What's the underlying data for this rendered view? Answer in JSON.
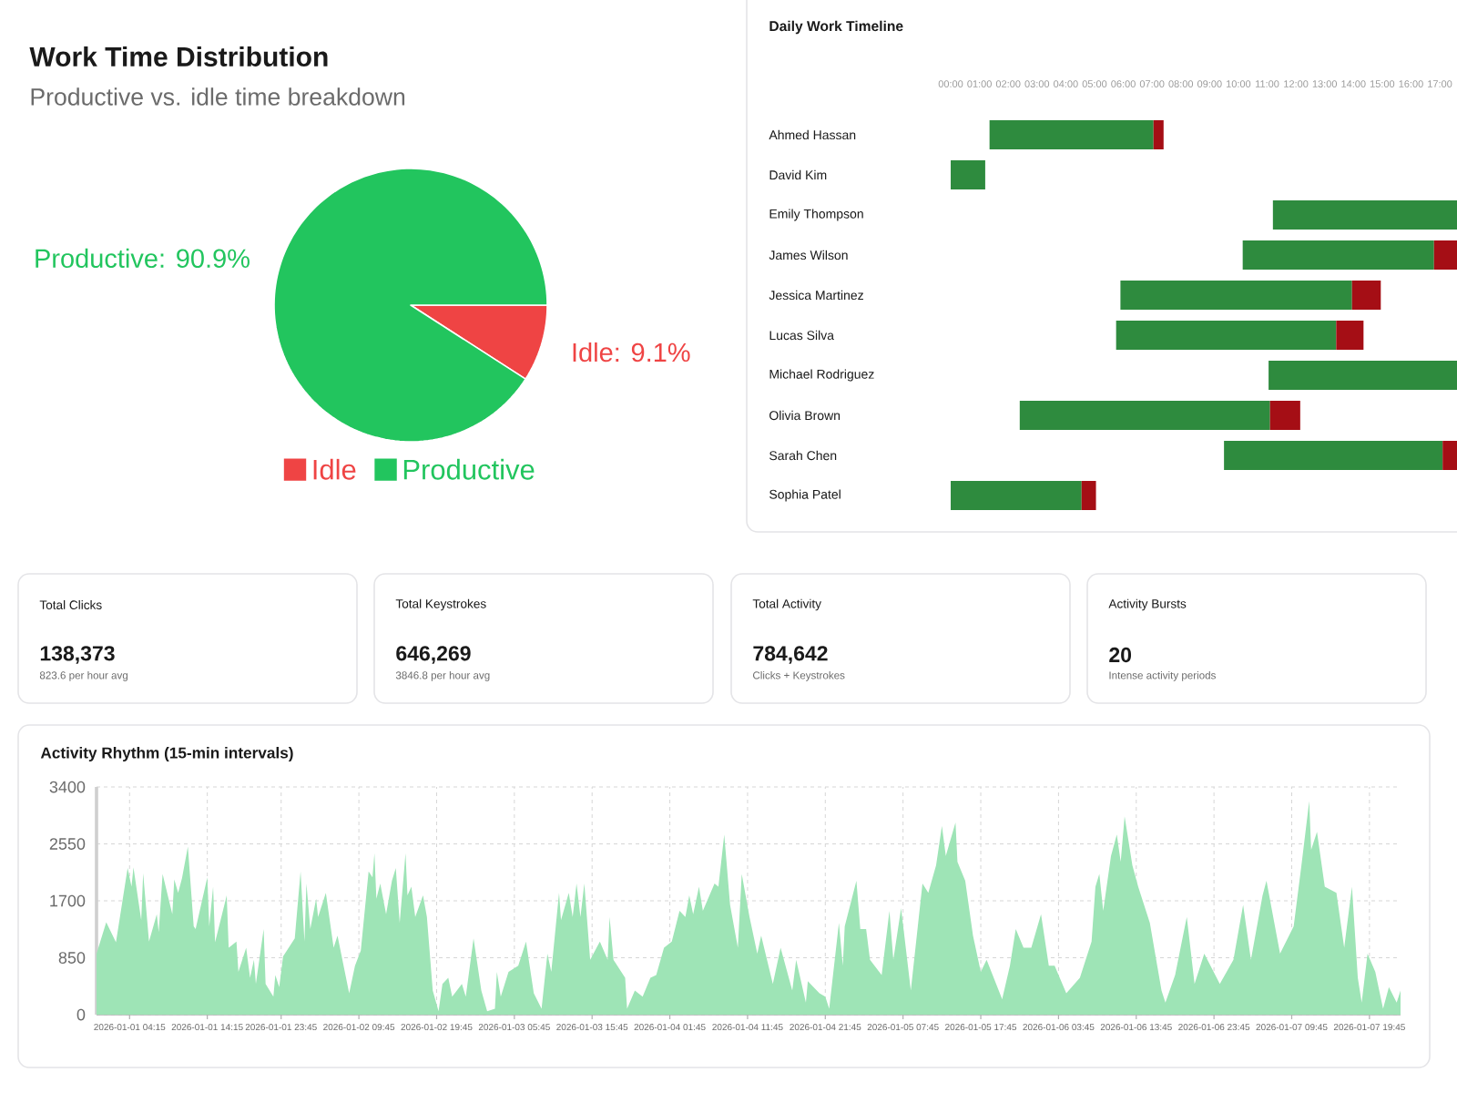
{
  "chart_data": [
    {
      "type": "pie",
      "title": "Work Time Distribution",
      "subtitle": "Productive vs. idle time breakdown",
      "categories": [
        "Idle",
        "Productive"
      ],
      "values": [
        9.1,
        90.9
      ],
      "colors": [
        "#ef4444",
        "#22c55e"
      ],
      "value_labels": [
        "Idle: 9.1%",
        "Productive: 90.9%"
      ],
      "legend": "bottom"
    },
    {
      "type": "bar",
      "orientation": "horizontal",
      "title": "Daily Work Timeline",
      "categories": [
        "Ahmed Hassan",
        "David Kim",
        "Emily Thompson",
        "James Wilson",
        "Jessica Martinez",
        "Lucas Silva",
        "Michael Rodriguez",
        "Olivia Brown",
        "Sarah Chen",
        "Sophia Patel"
      ],
      "series": [
        {
          "color": "#2e8b3e",
          "base": [
            1.35,
            0,
            11.2,
            10.15,
            5.9,
            5.75,
            11.05,
            2.4,
            9.5,
            0
          ],
          "values": [
            5.7,
            1.2,
            6.4,
            6.65,
            8.05,
            7.65,
            6.55,
            8.7,
            7.6,
            4.55
          ]
        },
        {
          "color": "#a50e15",
          "base": [
            7.05,
            null,
            null,
            16.8,
            13.95,
            13.4,
            null,
            11.1,
            17.1,
            4.55
          ],
          "values": [
            0.35,
            null,
            null,
            0.8,
            1.0,
            0.95,
            null,
            1.05,
            0.5,
            0.5
          ]
        }
      ],
      "xlim": [
        0,
        17.6
      ],
      "xticks": [
        {
          "value": 0,
          "label": "00:00"
        },
        {
          "value": 1,
          "label": "01:00"
        },
        {
          "value": 2,
          "label": "02:00"
        },
        {
          "value": 3,
          "label": "03:00"
        },
        {
          "value": 4,
          "label": "04:00"
        },
        {
          "value": 5,
          "label": "05:00"
        },
        {
          "value": 6,
          "label": "06:00"
        },
        {
          "value": 7,
          "label": "07:00"
        },
        {
          "value": 8,
          "label": "08:00"
        },
        {
          "value": 9,
          "label": "09:00"
        },
        {
          "value": 10,
          "label": "10:00"
        },
        {
          "value": 11,
          "label": "11:00"
        },
        {
          "value": 12,
          "label": "12:00"
        },
        {
          "value": 13,
          "label": "13:00"
        },
        {
          "value": 14,
          "label": "14:00"
        },
        {
          "value": 15,
          "label": "15:00"
        },
        {
          "value": 16,
          "label": "16:00"
        },
        {
          "value": 17,
          "label": "17:00"
        }
      ]
    },
    {
      "type": "other",
      "title": "Total Clicks",
      "annotations": [
        "138,373",
        "823.6 per hour avg"
      ]
    },
    {
      "type": "other",
      "title": "Total Keystrokes",
      "annotations": [
        "646,269",
        "3846.8 per hour avg"
      ]
    },
    {
      "type": "other",
      "title": "Total Activity",
      "annotations": [
        "784,642",
        "Clicks + Keystrokes"
      ]
    },
    {
      "type": "other",
      "title": "Activity Bursts",
      "annotations": [
        "20",
        "Intense activity periods"
      ]
    },
    {
      "type": "area",
      "title": "Activity Rhythm (15-min intervals)",
      "color": "#9ee4b6",
      "grid": true,
      "x": [
        "2026-01-01T00:00",
        "2026-01-01T01:15",
        "2026-01-01T02:30",
        "2026-01-01T04:00",
        "2026-01-01T04:30",
        "2026-01-01T04:45",
        "2026-01-01T05:45",
        "2026-01-01T06:00",
        "2026-01-01T06:45",
        "2026-01-01T07:45",
        "2026-01-01T08:00",
        "2026-01-01T08:30",
        "2026-01-01T09:45",
        "2026-01-01T10:00",
        "2026-01-01T10:30",
        "2026-01-01T11:00",
        "2026-01-01T11:45",
        "2026-01-01T12:30",
        "2026-01-01T12:45",
        "2026-01-01T14:15",
        "2026-01-01T14:30",
        "2026-01-01T15:00",
        "2026-01-01T15:15",
        "2026-01-01T16:45",
        "2026-01-01T17:00",
        "2026-01-01T18:00",
        "2026-01-01T18:15",
        "2026-01-01T19:15",
        "2026-01-01T19:45",
        "2026-01-01T20:15",
        "2026-01-01T20:30",
        "2026-01-01T21:30",
        "2026-01-01T21:45",
        "2026-01-01T22:45",
        "2026-01-01T23:00",
        "2026-01-01T23:30",
        "2026-01-02T00:00",
        "2026-01-02T01:30",
        "2026-01-02T02:15",
        "2026-01-02T02:45",
        "2026-01-02T03:00",
        "2026-01-02T03:30",
        "2026-01-02T04:15",
        "2026-01-02T04:30",
        "2026-01-02T05:30",
        "2026-01-02T06:30",
        "2026-01-02T07:00",
        "2026-01-02T08:30",
        "2026-01-02T09:15",
        "2026-01-02T10:00",
        "2026-01-02T11:00",
        "2026-01-02T11:30",
        "2026-01-02T11:45",
        "2026-01-02T12:00",
        "2026-01-02T12:30",
        "2026-01-02T13:15",
        "2026-01-02T14:00",
        "2026-01-02T14:30",
        "2026-01-02T15:00",
        "2026-01-02T15:45",
        "2026-01-02T16:00",
        "2026-01-02T16:30",
        "2026-01-02T17:00",
        "2026-01-02T18:00",
        "2026-01-02T18:30",
        "2026-01-02T19:15",
        "2026-01-02T20:00",
        "2026-01-02T20:30",
        "2026-01-02T21:15",
        "2026-01-02T21:45",
        "2026-01-02T23:00",
        "2026-01-02T23:30",
        "2026-01-03T00:30",
        "2026-01-03T01:30",
        "2026-01-03T02:15",
        "2026-01-03T03:15",
        "2026-01-03T03:30",
        "2026-01-03T04:00",
        "2026-01-03T05:00",
        "2026-01-03T06:15",
        "2026-01-03T07:15",
        "2026-01-03T08:15",
        "2026-01-03T09:15",
        "2026-01-03T10:00",
        "2026-01-03T10:30",
        "2026-01-03T11:30",
        "2026-01-03T11:45",
        "2026-01-03T12:45",
        "2026-01-03T13:15",
        "2026-01-03T13:45",
        "2026-01-03T14:15",
        "2026-01-03T14:45",
        "2026-01-03T15:30",
        "2026-01-03T16:45",
        "2026-01-03T17:45",
        "2026-01-03T18:00",
        "2026-01-03T18:30",
        "2026-01-03T20:00",
        "2026-01-03T20:15",
        "2026-01-03T21:15",
        "2026-01-03T22:15",
        "2026-01-03T23:15",
        "2026-01-04T00:00",
        "2026-01-04T01:00",
        "2026-01-04T02:00",
        "2026-01-04T03:00",
        "2026-01-04T03:45",
        "2026-01-04T04:15",
        "2026-01-04T04:45",
        "2026-01-04T05:30",
        "2026-01-04T06:00",
        "2026-01-04T07:30",
        "2026-01-04T08:00",
        "2026-01-04T08:45",
        "2026-01-04T09:30",
        "2026-01-04T10:30",
        "2026-01-04T11:00",
        "2026-01-04T12:00",
        "2026-01-04T13:00",
        "2026-01-04T13:30",
        "2026-01-04T15:00",
        "2026-01-04T16:00",
        "2026-01-04T17:30",
        "2026-01-04T18:00",
        "2026-01-04T19:15",
        "2026-01-04T19:30",
        "2026-01-04T21:00",
        "2026-01-04T21:45",
        "2026-01-04T22:15",
        "2026-01-04T23:30",
        "2026-01-05T00:00",
        "2026-01-05T00:15",
        "2026-01-05T01:45",
        "2026-01-05T02:15",
        "2026-01-05T03:00",
        "2026-01-05T03:30",
        "2026-01-05T05:00",
        "2026-01-05T06:00",
        "2026-01-05T06:30",
        "2026-01-05T07:30",
        "2026-01-05T08:45",
        "2026-01-05T10:15",
        "2026-01-05T11:00",
        "2026-01-05T12:00",
        "2026-01-05T12:45",
        "2026-01-05T13:15",
        "2026-01-05T14:30",
        "2026-01-05T14:45",
        "2026-01-05T15:45",
        "2026-01-05T16:45",
        "2026-01-05T17:45",
        "2026-01-05T18:30",
        "2026-01-05T20:30",
        "2026-01-05T21:30",
        "2026-01-05T22:15",
        "2026-01-05T23:15",
        "2026-01-06T00:15",
        "2026-01-06T01:30",
        "2026-01-06T02:30",
        "2026-01-06T03:15",
        "2026-01-06T04:45",
        "2026-01-06T06:30",
        "2026-01-06T08:00",
        "2026-01-06T08:30",
        "2026-01-06T09:00",
        "2026-01-06T09:30",
        "2026-01-06T10:30",
        "2026-01-06T11:15",
        "2026-01-06T11:45",
        "2026-01-06T12:15",
        "2026-01-06T13:15",
        "2026-01-06T14:00",
        "2026-01-06T15:30",
        "2026-01-06T17:00",
        "2026-01-06T17:30",
        "2026-01-06T18:45",
        "2026-01-06T20:15",
        "2026-01-06T21:15",
        "2026-01-06T22:30",
        "2026-01-07T00:30",
        "2026-01-07T02:15",
        "2026-01-07T03:30",
        "2026-01-07T04:30",
        "2026-01-07T06:00",
        "2026-01-07T06:30",
        "2026-01-07T08:15",
        "2026-01-07T10:00",
        "2026-01-07T11:00",
        "2026-01-07T12:00",
        "2026-01-07T12:15",
        "2026-01-07T13:00",
        "2026-01-07T14:00",
        "2026-01-07T15:30",
        "2026-01-07T16:30",
        "2026-01-07T17:30",
        "2026-01-07T18:15",
        "2026-01-07T18:45",
        "2026-01-07T19:30",
        "2026-01-07T20:30",
        "2026-01-07T21:30",
        "2026-01-07T22:15",
        "2026-01-07T23:15",
        "2026-01-07T23:45"
      ],
      "values": [
        910,
        1380,
        1080,
        2190,
        1910,
        2200,
        1410,
        2110,
        1090,
        1500,
        1230,
        2100,
        1500,
        2020,
        1820,
        2040,
        2510,
        1320,
        1280,
        2050,
        1320,
        1910,
        1080,
        1780,
        1000,
        1090,
        640,
        1000,
        550,
        820,
        460,
        1280,
        460,
        270,
        590,
        410,
        870,
        1140,
        2140,
        1090,
        1960,
        1280,
        1730,
        1460,
        1820,
        1000,
        1180,
        320,
        730,
        960,
        2140,
        2050,
        2410,
        1730,
        1960,
        1500,
        2000,
        2190,
        1370,
        2410,
        1780,
        1910,
        1460,
        1780,
        1460,
        360,
        50,
        460,
        550,
        270,
        460,
        270,
        1140,
        360,
        50,
        90,
        640,
        270,
        640,
        730,
        1090,
        320,
        90,
        910,
        640,
        1820,
        1410,
        1820,
        1460,
        1960,
        1460,
        1960,
        820,
        1090,
        820,
        1460,
        820,
        550,
        90,
        360,
        270,
        550,
        590,
        1000,
        1090,
        1550,
        1460,
        1780,
        1500,
        1910,
        1550,
        1960,
        1910,
        2690,
        1640,
        1000,
        2100,
        1460,
        910,
        1180,
        460,
        1000,
        360,
        820,
        180,
        500,
        320,
        270,
        90,
        1370,
        730,
        1320,
        2000,
        1280,
        1280,
        820,
        590,
        1550,
        820,
        1590,
        360,
        1960,
        1820,
        2230,
        2820,
        2370,
        2870,
        2280,
        2000,
        1180,
        640,
        820,
        230,
        730,
        1280,
        1000,
        1000,
        1500,
        730,
        730,
        320,
        550,
        1090,
        1910,
        2100,
        1550,
        2370,
        2690,
        2280,
        2960,
        2230,
        1910,
        1370,
        360,
        180,
        590,
        1460,
        460,
        910,
        460,
        820,
        1640,
        820,
        1780,
        2000,
        910,
        1320,
        2230,
        3190,
        2460,
        2730,
        1910,
        1820,
        1000,
        1910,
        550,
        180,
        910,
        640,
        90,
        410,
        180,
        360
      ],
      "xlim": [
        "2026-01-01T00:00",
        "2026-01-07T23:45"
      ],
      "ylim": [
        0,
        3400
      ],
      "yticks": [
        0,
        850,
        1700,
        2550,
        3400
      ],
      "xticks": [
        {
          "value": "2026-01-01T04:15",
          "label": "2026-01-01 04:15"
        },
        {
          "value": "2026-01-01T14:15",
          "label": "2026-01-01 14:15"
        },
        {
          "value": "2026-01-01T23:45",
          "label": "2026-01-01 23:45"
        },
        {
          "value": "2026-01-02T09:45",
          "label": "2026-01-02 09:45"
        },
        {
          "value": "2026-01-02T19:45",
          "label": "2026-01-02 19:45"
        },
        {
          "value": "2026-01-03T05:45",
          "label": "2026-01-03 05:45"
        },
        {
          "value": "2026-01-03T15:45",
          "label": "2026-01-03 15:45"
        },
        {
          "value": "2026-01-04T01:45",
          "label": "2026-01-04 01:45"
        },
        {
          "value": "2026-01-04T11:45",
          "label": "2026-01-04 11:45"
        },
        {
          "value": "2026-01-04T21:45",
          "label": "2026-01-04 21:45"
        },
        {
          "value": "2026-01-05T07:45",
          "label": "2026-01-05 07:45"
        },
        {
          "value": "2026-01-05T17:45",
          "label": "2026-01-05 17:45"
        },
        {
          "value": "2026-01-06T03:45",
          "label": "2026-01-06 03:45"
        },
        {
          "value": "2026-01-06T13:45",
          "label": "2026-01-06 13:45"
        },
        {
          "value": "2026-01-06T23:45",
          "label": "2026-01-06 23:45"
        },
        {
          "value": "2026-01-07T09:45",
          "label": "2026-01-07 09:45"
        },
        {
          "value": "2026-01-07T19:45",
          "label": "2026-01-07 19:45"
        }
      ]
    }
  ]
}
